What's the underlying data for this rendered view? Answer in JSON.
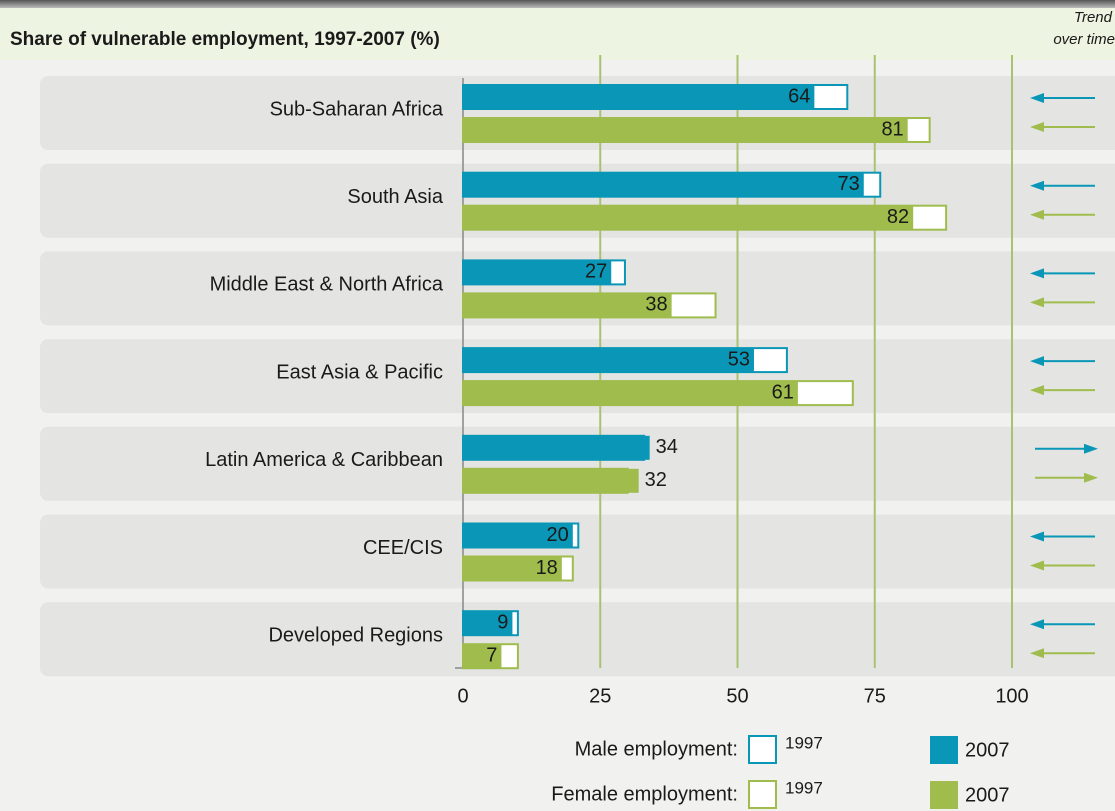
{
  "chart_data": {
    "type": "bar",
    "title": "Share of vulnerable employment, 1997-2007 (%)",
    "trend_label": [
      "Trend",
      "over time"
    ],
    "categories": [
      "Sub-Saharan Africa",
      "South Asia",
      "Middle East & North Africa",
      "East Asia & Pacific",
      "Latin America & Caribbean",
      "CEE/CIS",
      "Developed Regions"
    ],
    "series": [
      {
        "name": "Male employment:",
        "color": "#0a97b7",
        "years": [
          "1997",
          "2007"
        ],
        "values_1997": [
          70,
          76,
          29.5,
          59,
          33,
          21,
          10
        ],
        "values_2007": [
          64,
          73,
          27,
          53,
          34,
          20,
          9
        ]
      },
      {
        "name": "Female employment:",
        "color": "#9fbc4c",
        "years": [
          "1997",
          "2007"
        ],
        "values_1997": [
          85,
          88,
          46,
          71,
          30,
          20,
          10
        ],
        "values_2007": [
          81,
          82,
          38,
          61,
          32,
          18,
          7
        ]
      }
    ],
    "xlim": [
      0,
      100
    ],
    "xticks": [
      0,
      25,
      50,
      75,
      100
    ],
    "grid": true
  }
}
